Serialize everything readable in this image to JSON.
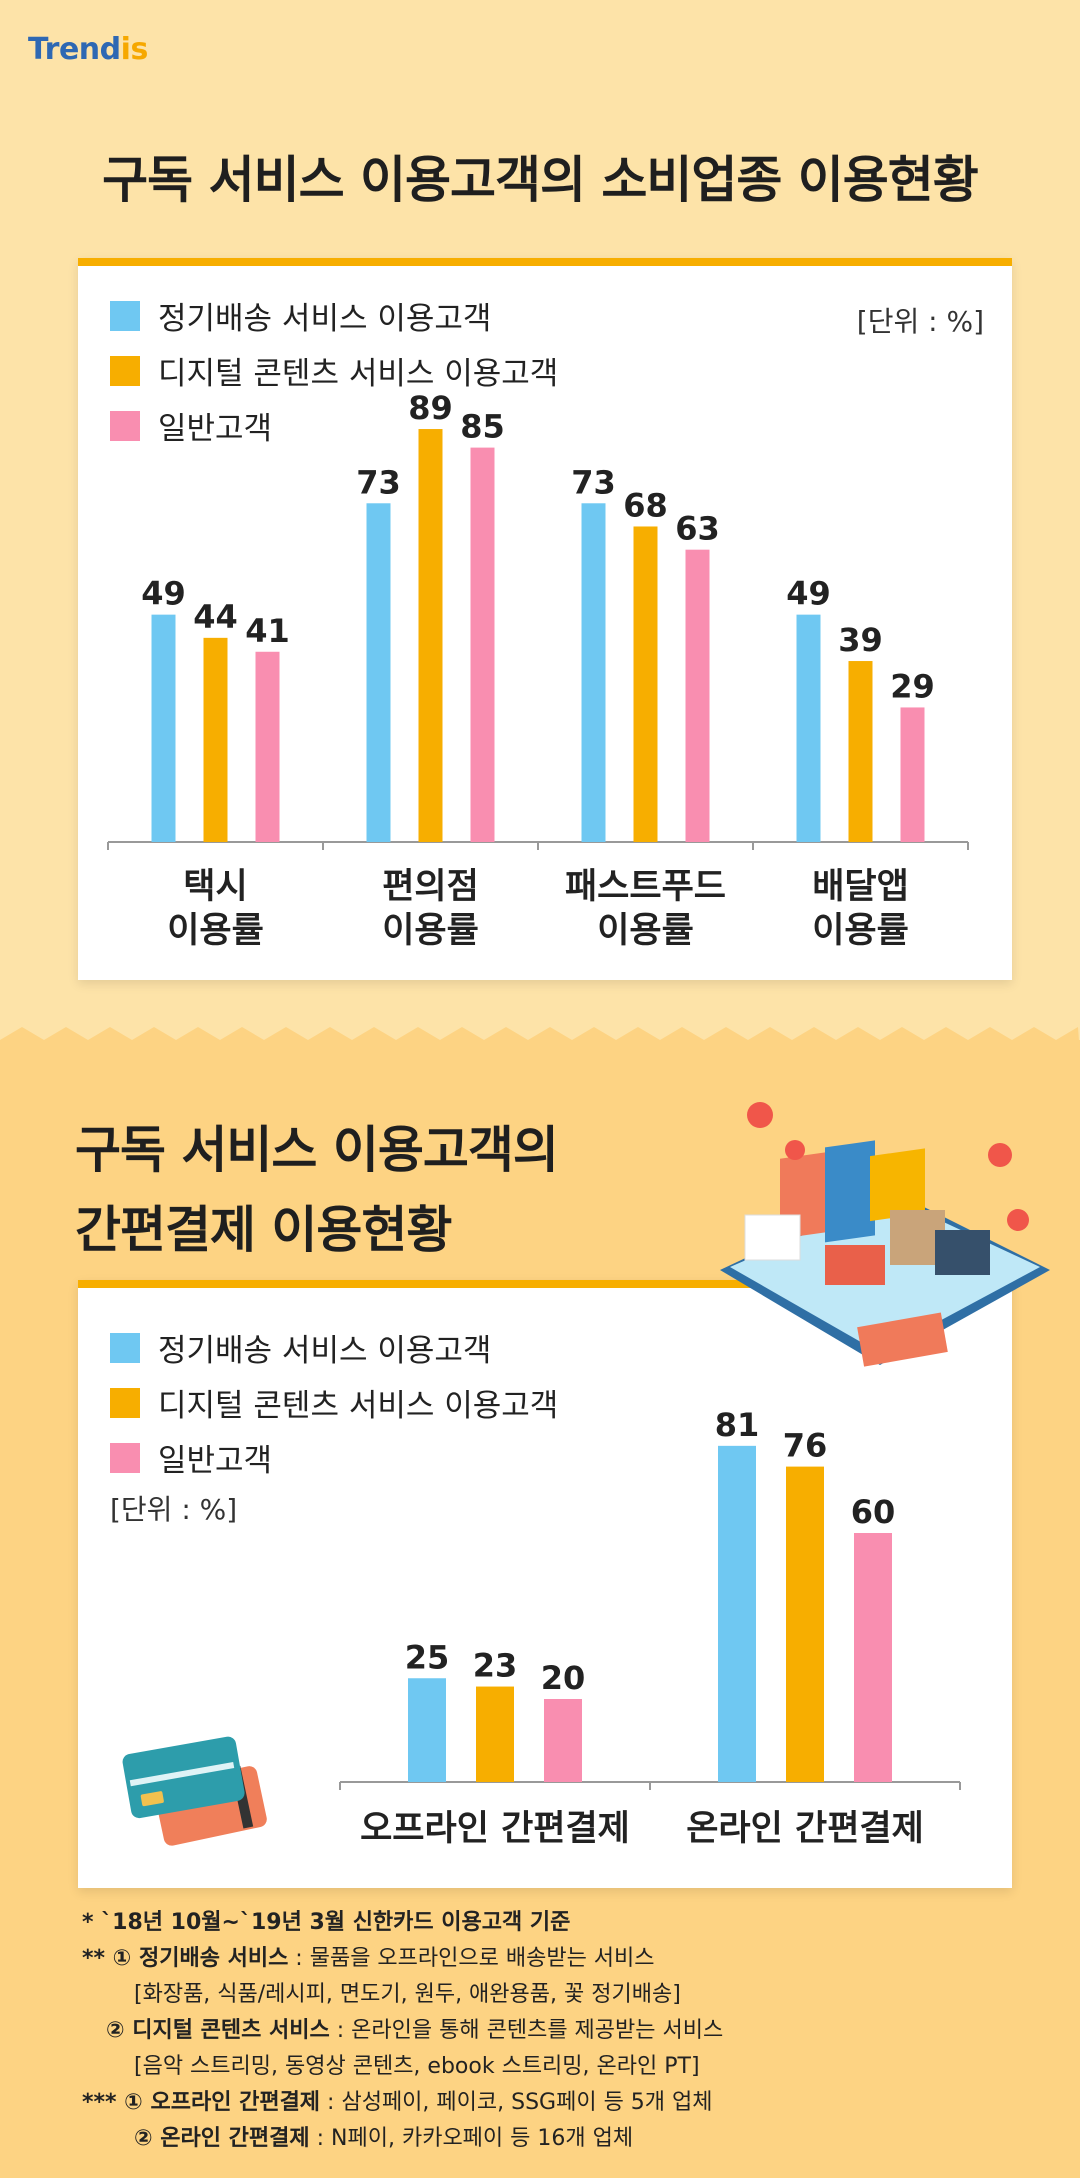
{
  "logo": {
    "text_main": "Trend",
    "text_accent": "is"
  },
  "colors": {
    "blue": "#6fc8f2",
    "orange": "#f7ae00",
    "pink": "#f98eb0",
    "accent": "#f7ae00"
  },
  "section1": {
    "title": "구독 서비스 이용고객의 소비업종 이용현황",
    "unit": "[단위 : %]"
  },
  "section2": {
    "title_line1": "구독 서비스 이용고객의",
    "title_line2": "간편결제 이용현황",
    "unit": "[단위 : %]"
  },
  "legend": [
    "정기배송 서비스 이용고객",
    "디지털 콘텐츠 서비스 이용고객",
    "일반고객"
  ],
  "chart_data": [
    {
      "type": "bar",
      "title": "구독 서비스 이용고객의 소비업종 이용현황",
      "categories": [
        [
          "택시",
          "이용률"
        ],
        [
          "편의점",
          "이용률"
        ],
        [
          "패스트푸드",
          "이용률"
        ],
        [
          "배달앱",
          "이용률"
        ]
      ],
      "series": [
        {
          "name": "정기배송 서비스 이용고객",
          "values": [
            49,
            73,
            73,
            49
          ]
        },
        {
          "name": "디지털 콘텐츠 서비스 이용고객",
          "values": [
            44,
            89,
            68,
            39
          ]
        },
        {
          "name": "일반고객",
          "values": [
            41,
            85,
            63,
            29
          ]
        }
      ],
      "ylim": [
        0,
        100
      ],
      "grid": false,
      "legend_position": "top-left"
    },
    {
      "type": "bar",
      "title": "구독 서비스 이용고객의 간편결제 이용현황",
      "categories": [
        [
          "오프라인 간편결제"
        ],
        [
          "온라인 간편결제"
        ]
      ],
      "series": [
        {
          "name": "정기배송 서비스 이용고객",
          "values": [
            25,
            81
          ]
        },
        {
          "name": "디지털 콘텐츠 서비스 이용고객",
          "values": [
            23,
            76
          ]
        },
        {
          "name": "일반고객",
          "values": [
            20,
            60
          ]
        }
      ],
      "ylim": [
        0,
        100
      ],
      "grid": false,
      "legend_position": "top-left"
    }
  ],
  "notes": {
    "n1": "* `18년 10월~`19년 3월 신한카드 이용고객 기준",
    "n2_prefix": "** ① ",
    "n2_bold": "정기배송 서비스",
    "n2_text": " : 물품을 오프라인으로 배송받는 서비스",
    "n2_detail": "[화장품, 식품/레시피, 면도기, 원두, 애완용품, 꽃 정기배송]",
    "n3_prefix": "② ",
    "n3_bold": "디지털 콘텐츠 서비스",
    "n3_text": " : 온라인을 통해 콘텐츠를 제공받는 서비스",
    "n3_detail": "[음악 스트리밍, 동영상 콘텐츠, ebook 스트리밍, 온라인 PT]",
    "n4_prefix": "*** ① ",
    "n4_bold": "오프라인 간편결제",
    "n4_text": " : 삼성페이, 페이코, SSG페이 등 5개 업체",
    "n5_prefix": "② ",
    "n5_bold": "온라인 간편결제",
    "n5_text": " : N페이, 카카오페이 등 16개 업체"
  }
}
